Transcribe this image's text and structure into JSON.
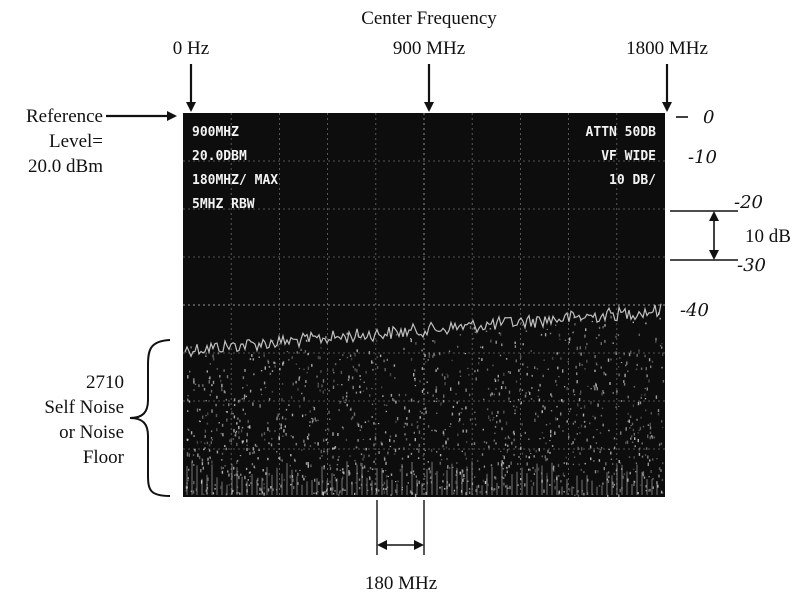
{
  "top_labels": {
    "center_frequency": "Center Frequency",
    "zero_hz": "0 Hz",
    "center_value": "900 MHz",
    "max_value": "1800 MHz"
  },
  "reference": {
    "line1": "Reference",
    "line2": "Level=",
    "line3": "20.0 dBm"
  },
  "screen": {
    "line1": "900MHZ",
    "line2": "20.0DBM",
    "line3": "180MHZ/ MAX",
    "line4": "5MHZ RBW",
    "right1": "ATTN 50DB",
    "right2": "VF WIDE",
    "right3": "10 DB/"
  },
  "handwritten_ticks": [
    "0",
    "-10",
    "-20",
    "-30",
    "-40"
  ],
  "scale_label": "10 dB",
  "noise_label": {
    "line1": "2710",
    "line2": "Self Noise",
    "line3": "or Noise",
    "line4": "Floor"
  },
  "span_label": "180 MHz",
  "colors": {
    "screen_bg": "#0d0d0d",
    "grid": "#6a6a6a",
    "trace": "#e0e0e0",
    "ink": "#111111"
  }
}
